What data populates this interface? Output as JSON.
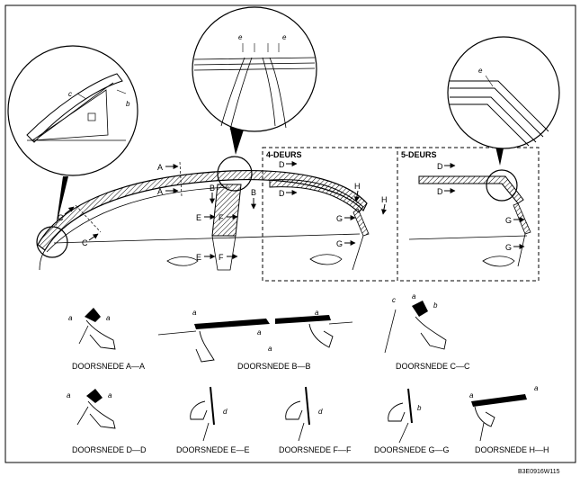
{
  "headings": {
    "four_door": "4-DEURS",
    "five_door": "5-DEURS"
  },
  "labels": {
    "A": "A",
    "B": "B",
    "C": "C",
    "D": "D",
    "E": "E",
    "F": "F",
    "G": "G",
    "H": "H",
    "a": "a",
    "b": "b",
    "c": "c",
    "d": "d",
    "e": "e"
  },
  "sections": [
    "DOORSNEDE A—A",
    "DOORSNEDE B—B",
    "DOORSNEDE C—C",
    "DOORSNEDE D—D",
    "DOORSNEDE E—E",
    "DOORSNEDE F—F",
    "DOORSNEDE G—G",
    "DOORSNEDE H—H"
  ],
  "reference": "B3E0916W115"
}
